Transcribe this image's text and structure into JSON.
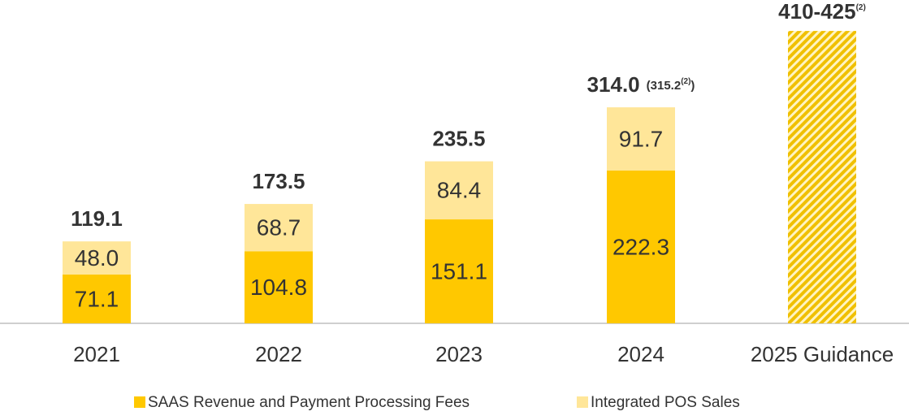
{
  "chart_data": {
    "type": "stacked_bar",
    "categories": [
      "2021",
      "2022",
      "2023",
      "2024",
      "2025 Guidance"
    ],
    "series": [
      {
        "name": "SAAS Revenue and Payment Processing Fees",
        "color": "#ffc800",
        "values": [
          71.1,
          104.8,
          151.1,
          222.3,
          null
        ]
      },
      {
        "name": "Integrated POS Sales",
        "color": "#ffe699",
        "values": [
          48.0,
          68.7,
          84.4,
          91.7,
          null
        ],
        "value_labels": [
          "48.0",
          "68.7",
          "84.4",
          "91.7",
          null
        ]
      }
    ],
    "totals": [
      119.1,
      173.5,
      235.5,
      314.0,
      null
    ],
    "totals_labels": [
      "119.1",
      "173.5",
      "235.5",
      "314.0",
      null
    ],
    "totals_note": [
      "(315.2",
      "(2)",
      ")"
    ],
    "guidance": {
      "low": 410,
      "high": 425,
      "label": "410-425",
      "note": "(2)",
      "color": "#ffc800"
    },
    "ylim": [
      0,
      470
    ]
  }
}
